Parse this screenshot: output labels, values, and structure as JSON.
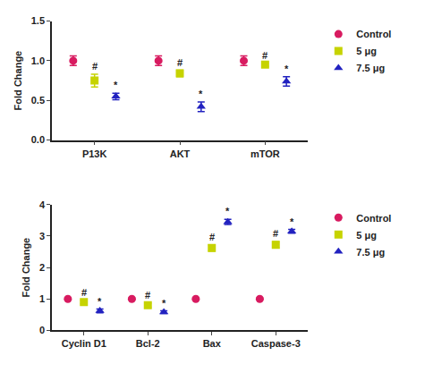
{
  "chart_data": [
    {
      "type": "scatter",
      "y_label": "Fold Change",
      "categories": [
        "P13K",
        "AKT",
        "mTOR"
      ],
      "series": [
        {
          "name": "Control",
          "color": "#d81b60",
          "marker": "circle",
          "values": [
            1.0,
            1.0,
            1.0
          ],
          "errors": [
            0.06,
            0.06,
            0.06
          ],
          "significance": [
            null,
            null,
            null
          ]
        },
        {
          "name": "5 μg",
          "color": "#c6d300",
          "marker": "square",
          "values": [
            0.75,
            0.84,
            0.95
          ],
          "errors": [
            0.08,
            0.04,
            0.02
          ],
          "significance": [
            "#",
            "#",
            "#"
          ]
        },
        {
          "name": "7.5 μg",
          "color": "#2222c0",
          "marker": "triangle-up",
          "values": [
            0.55,
            0.42,
            0.74
          ],
          "errors": [
            0.04,
            0.06,
            0.06
          ],
          "significance": [
            "*",
            "*",
            "*"
          ]
        }
      ],
      "ylim": [
        0,
        1.5
      ],
      "yticks": [
        {
          "value": 0,
          "label": "0.0"
        },
        {
          "value": 0.5,
          "label": "0.5"
        },
        {
          "value": 1,
          "label": "1.0"
        },
        {
          "value": 1.5,
          "label": "1.5"
        }
      ],
      "grid": false,
      "legend": "right"
    },
    {
      "type": "scatter",
      "y_label": "Fold Change",
      "categories": [
        "Cyclin D1",
        "Bcl-2",
        "Bax",
        "Caspase-3"
      ],
      "series": [
        {
          "name": "Control",
          "color": "#d81b60",
          "marker": "circle",
          "values": [
            1.0,
            1.0,
            1.0,
            1.0
          ],
          "errors": [
            0.03,
            0.03,
            0.03,
            0.03
          ],
          "significance": [
            null,
            null,
            null,
            null
          ]
        },
        {
          "name": "5 μg",
          "color": "#c6d300",
          "marker": "square",
          "values": [
            0.9,
            0.8,
            2.62,
            2.72
          ],
          "errors": [
            0.05,
            0.06,
            0.1,
            0.1
          ],
          "significance": [
            "#",
            "#",
            "#",
            "#"
          ]
        },
        {
          "name": "7.5 μg",
          "color": "#2222c0",
          "marker": "triangle-up",
          "values": [
            0.62,
            0.58,
            3.45,
            3.15
          ],
          "errors": [
            0.06,
            0.04,
            0.08,
            0.06
          ],
          "significance": [
            "*",
            "*",
            "*",
            "*"
          ]
        }
      ],
      "ylim": [
        0,
        4
      ],
      "yticks": [
        0,
        1,
        2,
        3,
        4
      ],
      "grid": false,
      "legend": "right"
    }
  ]
}
